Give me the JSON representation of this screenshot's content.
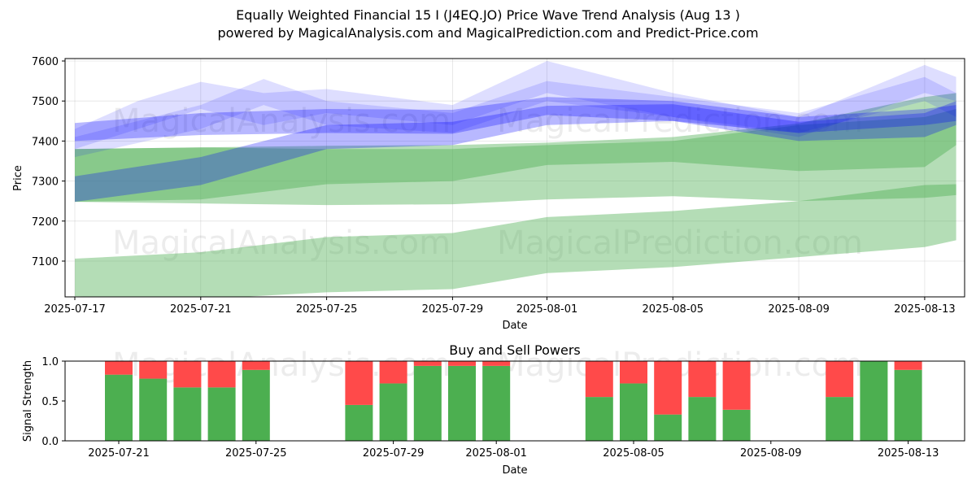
{
  "header": {
    "title_line1": "Equally Weighted Financial 15 I (J4EQ.JO) Price Wave Trend Analysis (Aug 13 )",
    "title_line2": "powered by MagicalAnalysis.com and MagicalPrediction.com and Predict-Price.com"
  },
  "watermarks": [
    "MagicalAnalysis.com",
    "MagicalPrediction.com"
  ],
  "chart_data": [
    {
      "type": "area",
      "xlabel": "Date",
      "ylabel": "Price",
      "ylim": [
        7012,
        7608
      ],
      "xlim": [
        "2025-07-16",
        "2025-08-14"
      ],
      "x_ticks": [
        "2025-07-17",
        "2025-07-21",
        "2025-07-25",
        "2025-07-29",
        "2025-08-01",
        "2025-08-05",
        "2025-08-09",
        "2025-08-13"
      ],
      "y_ticks": [
        7100,
        7200,
        7300,
        7400,
        7500,
        7600
      ],
      "grid": true,
      "colors": {
        "green_band": "#4caf50",
        "blue_band": "#0000ff"
      },
      "green_bands": [
        {
          "x": [
            "2025-07-17",
            "2025-07-21",
            "2025-07-25",
            "2025-07-29",
            "2025-08-01",
            "2025-08-05",
            "2025-08-09",
            "2025-08-13",
            "2025-08-14"
          ],
          "upper": [
            7380,
            7384,
            7388,
            7390,
            7396,
            7410,
            7444,
            7510,
            7520
          ],
          "lower": [
            7248,
            7254,
            7292,
            7300,
            7340,
            7348,
            7325,
            7335,
            7390
          ]
        },
        {
          "x": [
            "2025-07-17",
            "2025-07-21",
            "2025-07-25",
            "2025-07-29",
            "2025-08-01",
            "2025-08-05",
            "2025-08-09",
            "2025-08-13",
            "2025-08-14"
          ],
          "upper": [
            7380,
            7384,
            7380,
            7380,
            7390,
            7400,
            7440,
            7460,
            7480
          ],
          "lower": [
            7248,
            7244,
            7240,
            7242,
            7254,
            7262,
            7250,
            7258,
            7265
          ]
        },
        {
          "x": [
            "2025-07-17",
            "2025-07-21",
            "2025-07-25",
            "2025-07-29",
            "2025-08-01",
            "2025-08-05",
            "2025-08-09",
            "2025-08-13",
            "2025-08-14"
          ],
          "upper": [
            7106,
            7122,
            7160,
            7170,
            7210,
            7225,
            7250,
            7290,
            7292
          ],
          "lower": [
            7012,
            7005,
            7022,
            7030,
            7070,
            7085,
            7110,
            7135,
            7152
          ]
        }
      ],
      "blue_bands": [
        {
          "x": [
            "2025-07-17",
            "2025-07-21",
            "2025-07-25",
            "2025-07-29",
            "2025-08-01",
            "2025-08-05",
            "2025-08-09",
            "2025-08-13",
            "2025-08-14"
          ],
          "upper": [
            7312,
            7360,
            7440,
            7448,
            7488,
            7492,
            7448,
            7470,
            7500
          ],
          "lower": [
            7248,
            7290,
            7380,
            7390,
            7440,
            7450,
            7400,
            7410,
            7440
          ]
        },
        {
          "x": [
            "2025-07-17",
            "2025-07-21",
            "2025-07-25",
            "2025-07-29",
            "2025-08-01",
            "2025-08-05",
            "2025-08-09",
            "2025-08-13",
            "2025-08-14"
          ],
          "upper": [
            7445,
            7470,
            7480,
            7478,
            7510,
            7500,
            7460,
            7480,
            7490
          ],
          "lower": [
            7400,
            7415,
            7420,
            7418,
            7465,
            7450,
            7420,
            7440,
            7450
          ]
        },
        {
          "x": [
            "2025-07-17",
            "2025-07-19",
            "2025-07-21",
            "2025-07-23",
            "2025-07-25",
            "2025-07-29",
            "2025-08-01",
            "2025-08-05",
            "2025-08-09",
            "2025-08-13",
            "2025-08-14"
          ],
          "upper": [
            7430,
            7500,
            7548,
            7520,
            7530,
            7490,
            7600,
            7520,
            7460,
            7590,
            7560
          ],
          "lower": [
            7380,
            7430,
            7480,
            7440,
            7470,
            7440,
            7520,
            7460,
            7410,
            7520,
            7500
          ]
        },
        {
          "x": [
            "2025-07-17",
            "2025-07-21",
            "2025-07-23",
            "2025-07-25",
            "2025-07-29",
            "2025-08-01",
            "2025-08-05",
            "2025-08-09",
            "2025-08-13",
            "2025-08-14"
          ],
          "upper": [
            7410,
            7490,
            7555,
            7500,
            7470,
            7550,
            7510,
            7470,
            7560,
            7520
          ],
          "lower": [
            7360,
            7430,
            7490,
            7440,
            7420,
            7500,
            7460,
            7420,
            7500,
            7460
          ]
        }
      ]
    },
    {
      "type": "bar",
      "title": "Buy and Sell Powers",
      "xlabel": "Date",
      "ylabel": "Signal Strength",
      "ylim": [
        0,
        1.0
      ],
      "y_ticks": [
        "0.0",
        "0.5",
        "1.0"
      ],
      "x_ticks": [
        "2025-07-21",
        "2025-07-25",
        "2025-07-29",
        "2025-08-01",
        "2025-08-05",
        "2025-08-09",
        "2025-08-13"
      ],
      "colors": {
        "buy": "#4caf50",
        "sell": "#ff4a4a"
      },
      "categories": [
        "2025-07-21",
        "2025-07-22",
        "2025-07-23",
        "2025-07-24",
        "2025-07-25",
        "2025-07-28",
        "2025-07-29",
        "2025-07-30",
        "2025-07-31",
        "2025-08-01",
        "2025-08-04",
        "2025-08-05",
        "2025-08-06",
        "2025-08-07",
        "2025-08-08",
        "2025-08-11",
        "2025-08-12",
        "2025-08-13"
      ],
      "series": [
        {
          "values": [
            0.83,
            0.78,
            0.67,
            0.67,
            0.89,
            0.45,
            0.72,
            0.94,
            0.94,
            0.94,
            0.55,
            0.72,
            0.33,
            0.55,
            0.39,
            0.55,
            1.0,
            0.89
          ]
        },
        {
          "values": [
            0.17,
            0.22,
            0.33,
            0.33,
            0.11,
            0.55,
            0.28,
            0.06,
            0.06,
            0.06,
            0.45,
            0.28,
            0.67,
            0.45,
            0.61,
            0.45,
            0.0,
            0.11
          ]
        }
      ]
    }
  ]
}
